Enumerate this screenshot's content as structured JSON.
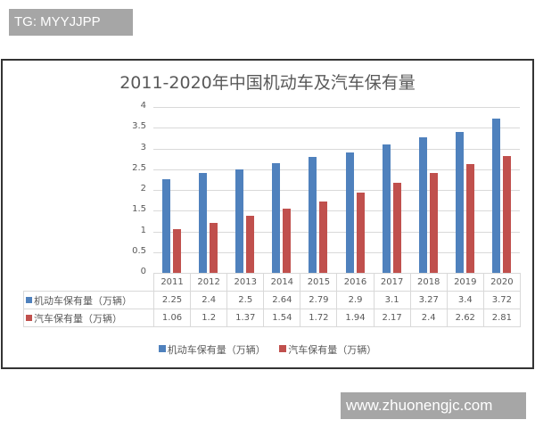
{
  "watermarks": {
    "top": "TG: MYYJJPP",
    "bottom": "www.zhuonengjc.com"
  },
  "chart_data": {
    "type": "bar",
    "title": "2011-2020年中国机动车及汽车保有量",
    "categories": [
      "2011",
      "2012",
      "2013",
      "2014",
      "2015",
      "2016",
      "2017",
      "2018",
      "2019",
      "2020"
    ],
    "series": [
      {
        "name": "机动车保有量（万辆）",
        "color": "#4f81bd",
        "values": [
          2.25,
          2.4,
          2.5,
          2.64,
          2.79,
          2.9,
          3.1,
          3.27,
          3.4,
          3.72
        ]
      },
      {
        "name": "汽车保有量（万辆）",
        "color": "#c0504d",
        "values": [
          1.06,
          1.2,
          1.37,
          1.54,
          1.72,
          1.94,
          2.17,
          2.4,
          2.62,
          2.81
        ]
      }
    ],
    "xlabel": "",
    "ylabel": "",
    "ylim": [
      0,
      4
    ],
    "yticks": [
      "0",
      "0.5",
      "1",
      "1.5",
      "2",
      "2.5",
      "3",
      "3.5",
      "4"
    ],
    "grid": true,
    "legend_position": "bottom",
    "data_table": true
  }
}
